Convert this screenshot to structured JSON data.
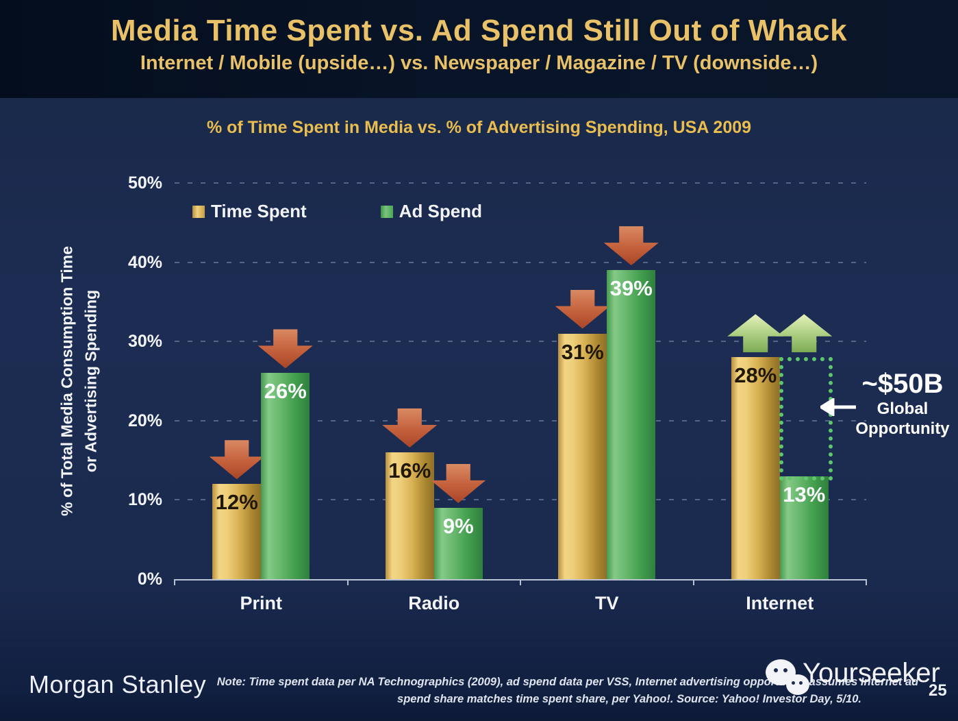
{
  "header": {
    "title": "Media Time Spent vs. Ad Spend Still Out of Whack",
    "subtitle": "Internet / Mobile (upside…) vs. Newspaper / Magazine / TV (downside…)"
  },
  "chart": {
    "title": "% of Time Spent in Media vs. % of Advertising Spending, USA 2009",
    "y_axis_title_line1": "% of Total Media Consumption Time",
    "y_axis_title_line2": "or Advertising Spending",
    "legend": [
      {
        "label": "Time Spent",
        "color": "#d9b45a"
      },
      {
        "label": "Ad Spend",
        "color": "#4ca456"
      }
    ]
  },
  "chart_data": {
    "type": "bar",
    "title": "% of Time Spent in Media vs. % of Advertising Spending, USA 2009",
    "categories": [
      "Print",
      "Radio",
      "TV",
      "Internet"
    ],
    "series": [
      {
        "name": "Time Spent",
        "values": [
          12,
          16,
          31,
          28
        ],
        "color": "#d9b45a",
        "label_color": "dark"
      },
      {
        "name": "Ad Spend",
        "values": [
          26,
          9,
          39,
          13
        ],
        "color": "#4ca456",
        "label_color": "light"
      }
    ],
    "value_label_format": "percent",
    "xlabel": "",
    "ylabel": "% of Total Media Consumption Time or Advertising Spending",
    "ylim": [
      0,
      50
    ],
    "yticks": [
      "0%",
      "10%",
      "20%",
      "30%",
      "40%",
      "50%"
    ],
    "grid": "horizontal-dotted",
    "legend_position": "top-left-inside",
    "arrow_dirs": [
      [
        "down",
        "down"
      ],
      [
        "down",
        "down"
      ],
      [
        "down",
        "down"
      ],
      [
        "up",
        "up"
      ]
    ],
    "arrow_anchors": [
      [
        12,
        26
      ],
      [
        16,
        9
      ],
      [
        31,
        39
      ],
      [
        28,
        28
      ]
    ],
    "arrow_colors": {
      "down": "#b65236",
      "up": "#a8cc7e"
    }
  },
  "gap_box": {
    "category": "Internet",
    "series": "Ad Spend",
    "from_value": 28,
    "to_value": 13,
    "border_color": "#5ec66c"
  },
  "annotation": {
    "value": "~$50B",
    "line1": "Global",
    "line2": "Opportunity",
    "arrow_direction": "left"
  },
  "footer": {
    "brand": "Morgan Stanley",
    "note_line1": "Note: Time spent data per NA Technographics (2009), ad spend data per VSS, Internet advertising opportunity assumes Internet ad",
    "note_line2": "spend share matches time spent share, per Yahoo!. Source: Yahoo! Investor Day, 5/10.",
    "watermark": "Yourseeker",
    "watermark_icon": "wechat-icon",
    "page_number": "25"
  },
  "colors": {
    "background": "#1b2b50",
    "header_background": "#081427",
    "title_gold": "#e8c169",
    "chart_title_gold": "#e9bd4f",
    "bar_gold": "#d9b45a",
    "bar_green": "#4ca456",
    "arrow_red": "#b65236",
    "arrow_up_green": "#a8cc7e",
    "dotted_box_green": "#5ec66c",
    "text_white": "#f2f4f8"
  }
}
